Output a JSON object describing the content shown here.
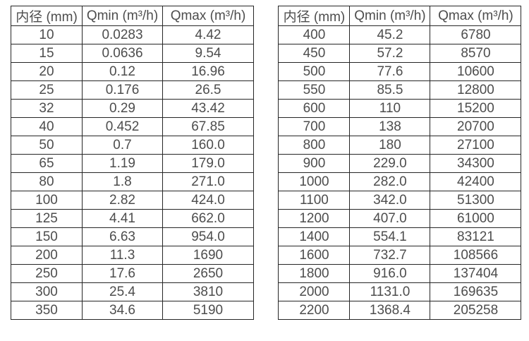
{
  "colors": {
    "background": "#ffffff",
    "border": "#262626",
    "text": "#4d4d4d"
  },
  "tables": [
    {
      "name": "flow-table-small-diameters",
      "headers": [
        "内径 (mm)",
        "Qmin (m³/h)",
        "Qmax (m³/h)"
      ],
      "rows": [
        [
          "10",
          "0.0283",
          "4.42"
        ],
        [
          "15",
          "0.0636",
          "9.54"
        ],
        [
          "20",
          "0.12",
          "16.96"
        ],
        [
          "25",
          "0.176",
          "26.5"
        ],
        [
          "32",
          "0.29",
          "43.42"
        ],
        [
          "40",
          "0.452",
          "67.85"
        ],
        [
          "50",
          "0.7",
          "160.0"
        ],
        [
          "65",
          "1.19",
          "179.0"
        ],
        [
          "80",
          "1.8",
          "271.0"
        ],
        [
          "100",
          "2.82",
          "424.0"
        ],
        [
          "125",
          "4.41",
          "662.0"
        ],
        [
          "150",
          "6.63",
          "954.0"
        ],
        [
          "200",
          "11.3",
          "1690"
        ],
        [
          "250",
          "17.6",
          "2650"
        ],
        [
          "300",
          "25.4",
          "3810"
        ],
        [
          "350",
          "34.6",
          "5190"
        ]
      ]
    },
    {
      "name": "flow-table-large-diameters",
      "headers": [
        "内径 (mm)",
        "Qmin (m³/h)",
        "Qmax (m³/h)"
      ],
      "rows": [
        [
          "400",
          "45.2",
          "6780"
        ],
        [
          "450",
          "57.2",
          "8570"
        ],
        [
          "500",
          "77.6",
          "10600"
        ],
        [
          "550",
          "85.5",
          "12800"
        ],
        [
          "600",
          "110",
          "15200"
        ],
        [
          "700",
          "138",
          "20700"
        ],
        [
          "800",
          "180",
          "27100"
        ],
        [
          "900",
          "229.0",
          "34300"
        ],
        [
          "1000",
          "282.0",
          "42400"
        ],
        [
          "1100",
          "342.0",
          "51300"
        ],
        [
          "1200",
          "407.0",
          "61000"
        ],
        [
          "1400",
          "554.1",
          "83121"
        ],
        [
          "1600",
          "732.7",
          "108566"
        ],
        [
          "1800",
          "916.0",
          "137404"
        ],
        [
          "2000",
          "1131.0",
          "169635"
        ],
        [
          "2200",
          "1368.4",
          "205258"
        ]
      ]
    }
  ]
}
